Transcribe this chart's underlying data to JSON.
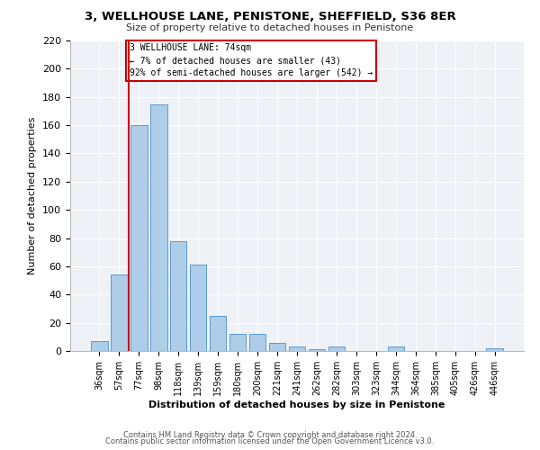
{
  "title": "3, WELLHOUSE LANE, PENISTONE, SHEFFIELD, S36 8ER",
  "subtitle": "Size of property relative to detached houses in Penistone",
  "xlabel": "Distribution of detached houses by size in Penistone",
  "ylabel": "Number of detached properties",
  "bar_labels": [
    "36sqm",
    "57sqm",
    "77sqm",
    "98sqm",
    "118sqm",
    "139sqm",
    "159sqm",
    "180sqm",
    "200sqm",
    "221sqm",
    "241sqm",
    "262sqm",
    "282sqm",
    "303sqm",
    "323sqm",
    "344sqm",
    "364sqm",
    "385sqm",
    "405sqm",
    "426sqm",
    "446sqm"
  ],
  "bar_values": [
    7,
    54,
    160,
    175,
    78,
    61,
    25,
    12,
    12,
    6,
    3,
    1,
    3,
    0,
    0,
    3,
    0,
    0,
    0,
    0,
    2
  ],
  "bar_color": "#aecde8",
  "bar_edge_color": "#5b9bd5",
  "vline_color": "#cc0000",
  "annotation_line1": "3 WELLHOUSE LANE: 74sqm",
  "annotation_line2": "← 7% of detached houses are smaller (43)",
  "annotation_line3": "92% of semi-detached houses are larger (542) →",
  "ylim": [
    0,
    220
  ],
  "yticks": [
    0,
    20,
    40,
    60,
    80,
    100,
    120,
    140,
    160,
    180,
    200,
    220
  ],
  "footer_line1": "Contains HM Land Registry data © Crown copyright and database right 2024.",
  "footer_line2": "Contains public sector information licensed under the Open Government Licence v3.0.",
  "bg_color": "#eef2f7"
}
